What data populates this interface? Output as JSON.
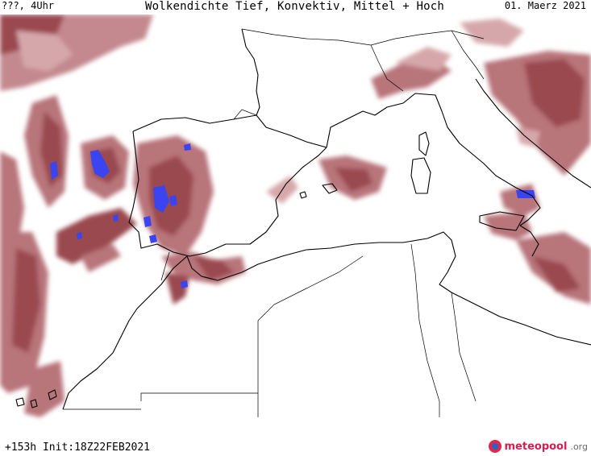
{
  "header": {
    "left": "???, 4Uhr",
    "title": "Wolkendichte  Tief, Konvektiv, Mittel + Hoch",
    "date": "01. Maerz 2021"
  },
  "footer": {
    "run": "+153h Init:18Z22FEB2021",
    "brand_name": "meteopool",
    "brand_tld": ".org"
  },
  "colors": {
    "cloud_dark": "#9a4a50",
    "cloud_mid": "#b8747a",
    "cloud_light": "#d6a7aa",
    "convective": "#3a44f0",
    "coast": "#000000"
  }
}
